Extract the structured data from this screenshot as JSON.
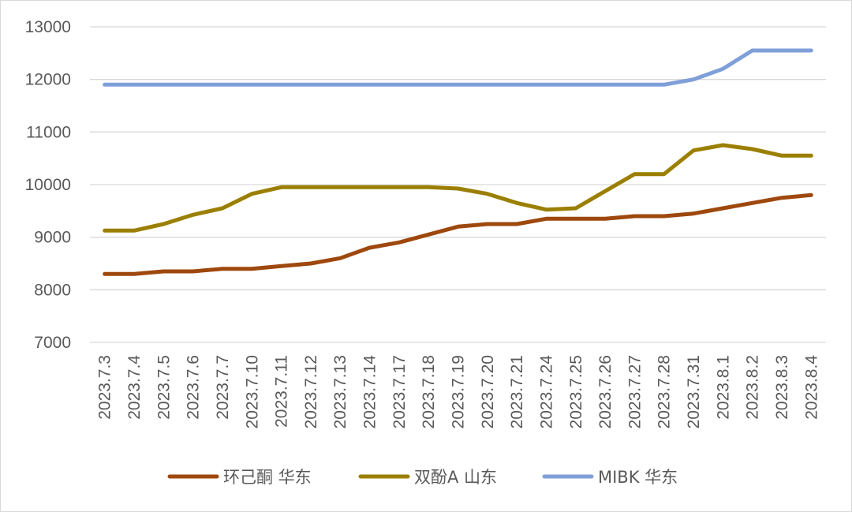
{
  "chart_data": {
    "type": "line",
    "title": "",
    "xlabel": "",
    "ylabel": "",
    "ylim": [
      7000,
      13000
    ],
    "y_ticks": [
      7000,
      8000,
      9000,
      10000,
      11000,
      12000,
      13000
    ],
    "grid": true,
    "legend_position": "bottom",
    "categories": [
      "2023.7.3",
      "2023.7.4",
      "2023.7.5",
      "2023.7.6",
      "2023.7.7",
      "2023.7.10",
      "2023.7.11",
      "2023.7.12",
      "2023.7.13",
      "2023.7.14",
      "2023.7.17",
      "2023.7.18",
      "2023.7.19",
      "2023.7.20",
      "2023.7.21",
      "2023.7.24",
      "2023.7.25",
      "2023.7.26",
      "2023.7.27",
      "2023.7.28",
      "2023.7.31",
      "2023.8.1",
      "2023.8.2",
      "2023.8.3",
      "2023.8.4"
    ],
    "series": [
      {
        "name": "环己酮 华东",
        "color": "#9e480e",
        "values": [
          8300,
          8300,
          8350,
          8350,
          8400,
          8400,
          8450,
          8500,
          8600,
          8800,
          8900,
          9050,
          9200,
          9250,
          9250,
          9350,
          9350,
          9350,
          9400,
          9400,
          9450,
          9550,
          9650,
          9750,
          9800
        ]
      },
      {
        "name": "双酚A 山东",
        "color": "#9b7f00",
        "values": [
          9125,
          9125,
          9250,
          9425,
          9550,
          9825,
          9950,
          9950,
          9950,
          9950,
          9950,
          9950,
          9925,
          9825,
          9650,
          9525,
          9550,
          9875,
          10200,
          10200,
          10650,
          10750,
          10675,
          10550,
          10550
        ]
      },
      {
        "name": "MIBK 华东",
        "color": "#7f9fd9",
        "values": [
          11900,
          11900,
          11900,
          11900,
          11900,
          11900,
          11900,
          11900,
          11900,
          11900,
          11900,
          11900,
          11900,
          11900,
          11900,
          11900,
          11900,
          11900,
          11900,
          11900,
          12000,
          12200,
          12550,
          12550,
          12550
        ]
      }
    ]
  }
}
